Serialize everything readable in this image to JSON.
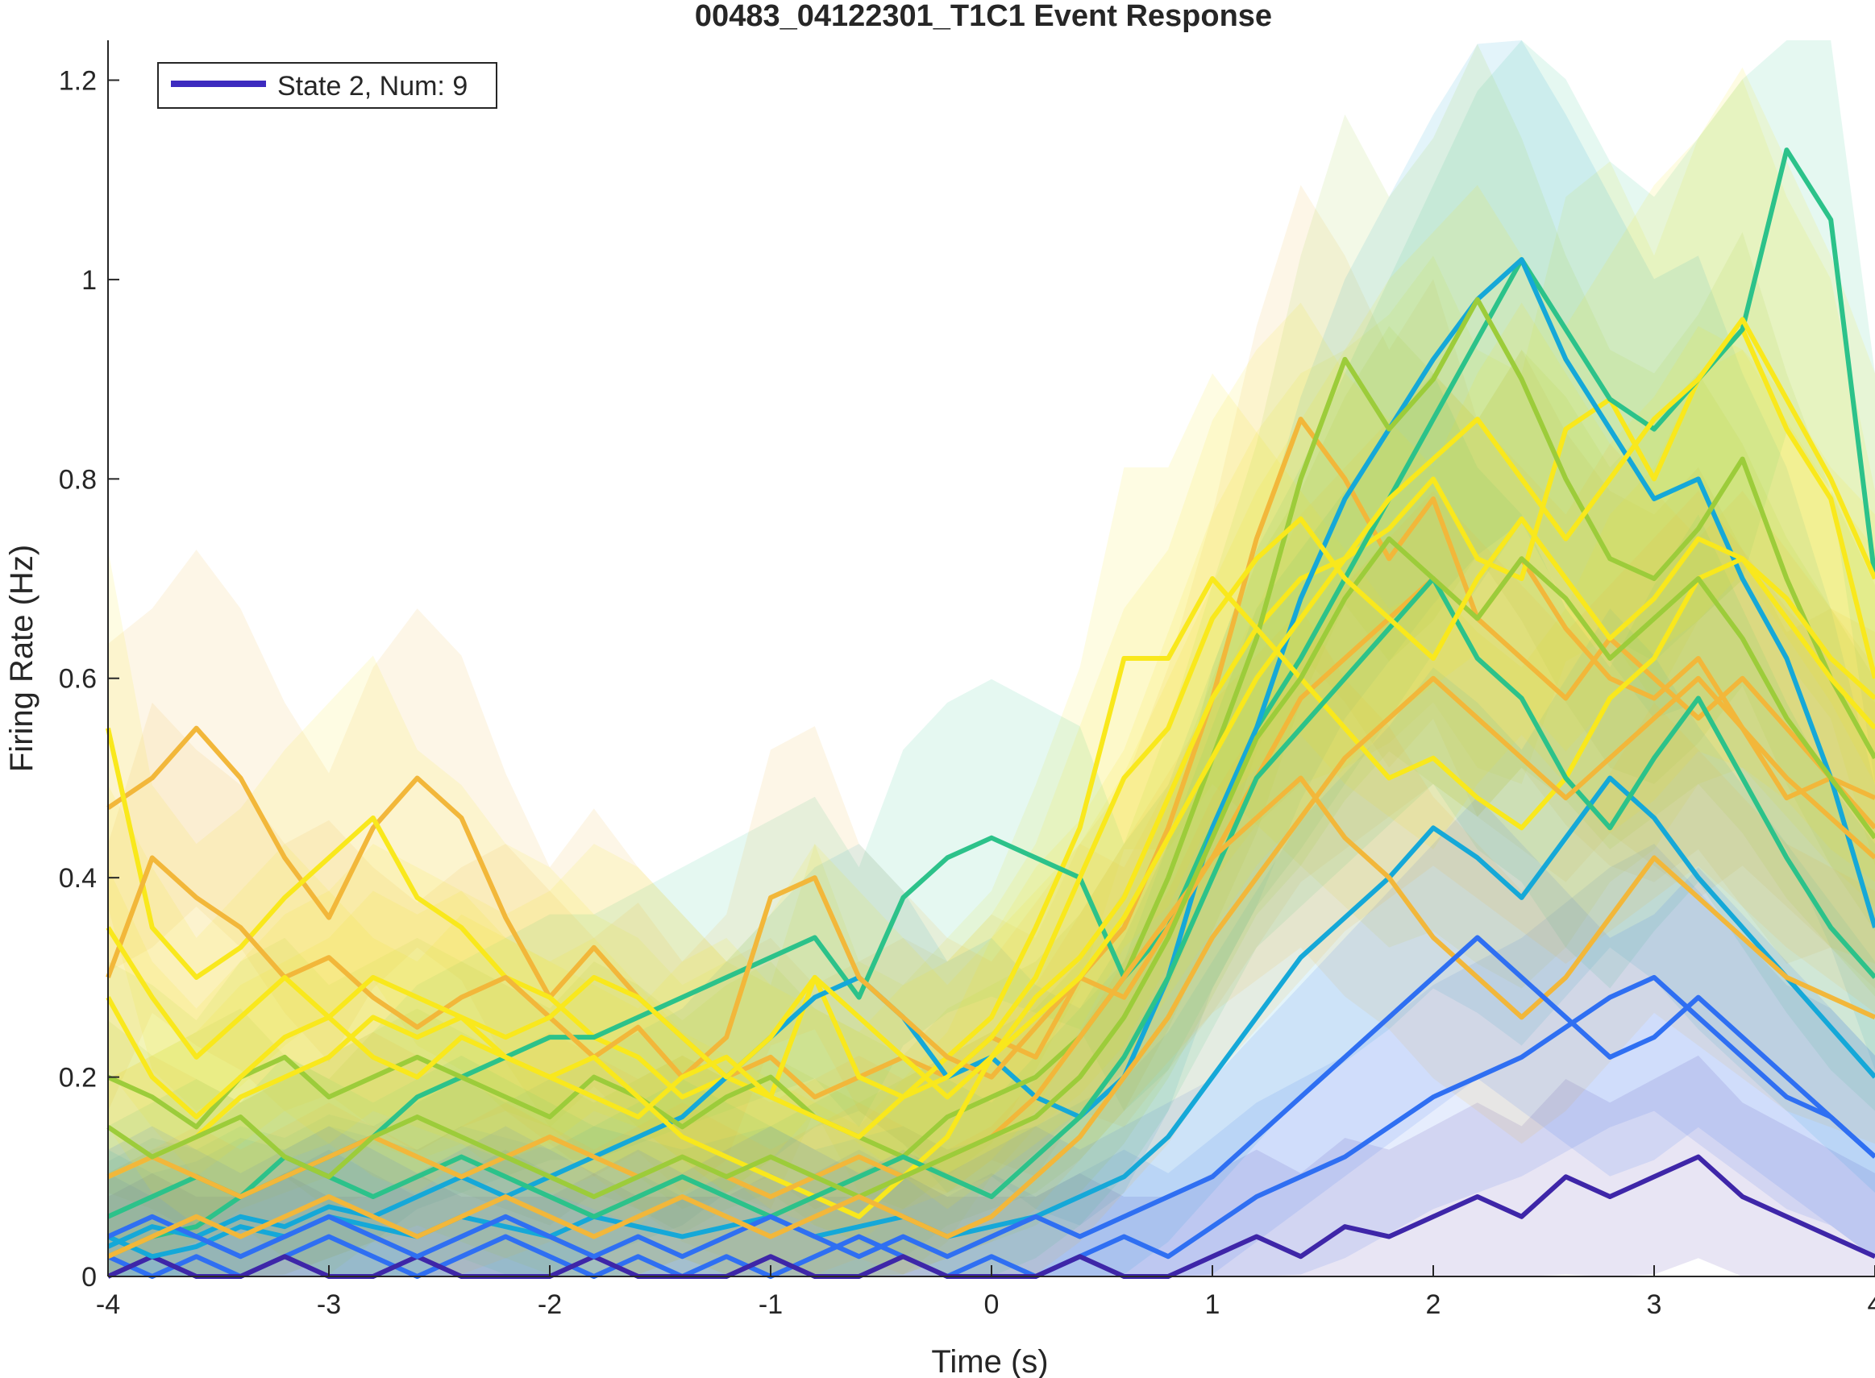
{
  "chart_data": {
    "type": "line",
    "title": "00483_04122301_T1C1 Event Response",
    "xlabel": "Time (s)",
    "ylabel": "Firing Rate (Hz)",
    "xlim": [
      -4,
      4
    ],
    "ylim": [
      0,
      1.24
    ],
    "xticks": [
      -4,
      -3,
      -2,
      -1,
      0,
      1,
      2,
      3,
      4
    ],
    "xtick_labels": [
      "-4",
      "-3",
      "-2",
      "-1",
      "0",
      "1",
      "2",
      "3",
      "4"
    ],
    "yticks": [
      0,
      0.2,
      0.4,
      0.6,
      0.8,
      1,
      1.2
    ],
    "ytick_labels": [
      "0",
      "0.2",
      "0.4",
      "0.6",
      "0.8",
      "1",
      "1.2"
    ],
    "grid": false,
    "legend": {
      "placement": "top-left",
      "entries": [
        {
          "label": "State 2, Num: 9",
          "color": "#3d2bbf"
        }
      ]
    },
    "colormap": [
      "#3e26a8",
      "#2f6ff2",
      "#15a8d8",
      "#2cc28a",
      "#9ccc3a",
      "#f2b73a",
      "#f9e81c"
    ],
    "x": [
      -4,
      -3.8,
      -3.6,
      -3.4,
      -3.2,
      -3,
      -2.8,
      -2.6,
      -2.4,
      -2.2,
      -2,
      -1.8,
      -1.6,
      -1.4,
      -1.2,
      -1,
      -0.8,
      -0.6,
      -0.4,
      -0.2,
      0,
      0.2,
      0.4,
      0.6,
      0.8,
      1,
      1.2,
      1.4,
      1.6,
      1.8,
      2,
      2.2,
      2.4,
      2.6,
      2.8,
      3,
      3.2,
      3.4,
      3.6,
      3.8,
      4
    ],
    "series": [
      {
        "color": "#f2b73a",
        "values": [
          0.47,
          0.5,
          0.55,
          0.5,
          0.42,
          0.36,
          0.45,
          0.5,
          0.46,
          0.36,
          0.28,
          0.33,
          0.28,
          0.24,
          0.2,
          0.22,
          0.18,
          0.2,
          0.22,
          0.2,
          0.24,
          0.22,
          0.3,
          0.35,
          0.45,
          0.58,
          0.74,
          0.86,
          0.8,
          0.72,
          0.78,
          0.66,
          0.72,
          0.65,
          0.6,
          0.58,
          0.62,
          0.55,
          0.48,
          0.5,
          0.45
        ]
      },
      {
        "color": "#f9e81c",
        "values": [
          0.55,
          0.35,
          0.3,
          0.33,
          0.38,
          0.42,
          0.46,
          0.38,
          0.35,
          0.3,
          0.28,
          0.24,
          0.22,
          0.18,
          0.2,
          0.18,
          0.3,
          0.2,
          0.18,
          0.22,
          0.26,
          0.35,
          0.45,
          0.62,
          0.62,
          0.7,
          0.65,
          0.7,
          0.72,
          0.75,
          0.8,
          0.72,
          0.7,
          0.85,
          0.88,
          0.8,
          0.9,
          0.95,
          0.85,
          0.78,
          0.6
        ]
      },
      {
        "color": "#2cc28a",
        "values": [
          0.02,
          0.04,
          0.05,
          0.08,
          0.1,
          0.12,
          0.14,
          0.18,
          0.2,
          0.22,
          0.24,
          0.24,
          0.26,
          0.28,
          0.3,
          0.32,
          0.34,
          0.28,
          0.38,
          0.42,
          0.44,
          0.42,
          0.4,
          0.3,
          0.35,
          0.45,
          0.55,
          0.62,
          0.7,
          0.78,
          0.86,
          0.94,
          1.02,
          0.95,
          0.88,
          0.85,
          0.9,
          0.95,
          1.13,
          1.06,
          0.7
        ]
      },
      {
        "color": "#15a8d8",
        "values": [
          0.03,
          0.05,
          0.04,
          0.06,
          0.05,
          0.07,
          0.06,
          0.08,
          0.1,
          0.08,
          0.1,
          0.12,
          0.14,
          0.16,
          0.2,
          0.24,
          0.28,
          0.3,
          0.26,
          0.2,
          0.22,
          0.18,
          0.16,
          0.2,
          0.3,
          0.45,
          0.55,
          0.68,
          0.78,
          0.85,
          0.92,
          0.98,
          1.02,
          0.92,
          0.85,
          0.78,
          0.8,
          0.7,
          0.62,
          0.5,
          0.35
        ]
      },
      {
        "color": "#9ccc3a",
        "values": [
          0.2,
          0.18,
          0.15,
          0.2,
          0.22,
          0.18,
          0.2,
          0.22,
          0.2,
          0.18,
          0.16,
          0.2,
          0.18,
          0.15,
          0.18,
          0.2,
          0.16,
          0.14,
          0.12,
          0.16,
          0.18,
          0.2,
          0.24,
          0.3,
          0.4,
          0.52,
          0.64,
          0.8,
          0.92,
          0.85,
          0.9,
          0.98,
          0.9,
          0.8,
          0.72,
          0.7,
          0.75,
          0.82,
          0.7,
          0.6,
          0.52
        ]
      },
      {
        "color": "#f2b73a",
        "values": [
          0.3,
          0.42,
          0.38,
          0.35,
          0.3,
          0.32,
          0.28,
          0.25,
          0.28,
          0.3,
          0.26,
          0.22,
          0.25,
          0.2,
          0.24,
          0.38,
          0.4,
          0.3,
          0.26,
          0.22,
          0.2,
          0.25,
          0.3,
          0.28,
          0.35,
          0.42,
          0.5,
          0.58,
          0.62,
          0.66,
          0.7,
          0.66,
          0.62,
          0.58,
          0.64,
          0.6,
          0.56,
          0.6,
          0.55,
          0.5,
          0.48
        ]
      },
      {
        "color": "#f9e81c",
        "values": [
          0.1,
          0.12,
          0.14,
          0.18,
          0.2,
          0.22,
          0.26,
          0.24,
          0.26,
          0.22,
          0.2,
          0.22,
          0.18,
          0.14,
          0.12,
          0.1,
          0.08,
          0.06,
          0.1,
          0.14,
          0.22,
          0.28,
          0.32,
          0.38,
          0.48,
          0.58,
          0.65,
          0.6,
          0.55,
          0.5,
          0.52,
          0.48,
          0.45,
          0.5,
          0.58,
          0.62,
          0.7,
          0.72,
          0.66,
          0.6,
          0.55
        ]
      },
      {
        "color": "#2f6ff2",
        "values": [
          0.02,
          0.0,
          0.02,
          0.0,
          0.02,
          0.04,
          0.02,
          0.0,
          0.02,
          0.04,
          0.02,
          0.0,
          0.02,
          0.0,
          0.02,
          0.0,
          0.02,
          0.04,
          0.02,
          0.0,
          0.02,
          0.0,
          0.02,
          0.04,
          0.02,
          0.05,
          0.08,
          0.1,
          0.12,
          0.15,
          0.18,
          0.2,
          0.22,
          0.25,
          0.28,
          0.3,
          0.26,
          0.22,
          0.18,
          0.16,
          0.12
        ]
      },
      {
        "color": "#3e26a8",
        "values": [
          0.0,
          0.02,
          0.0,
          0.0,
          0.02,
          0.0,
          0.0,
          0.02,
          0.0,
          0.0,
          0.0,
          0.02,
          0.0,
          0.0,
          0.0,
          0.02,
          0.0,
          0.0,
          0.02,
          0.0,
          0.0,
          0.0,
          0.02,
          0.0,
          0.0,
          0.02,
          0.04,
          0.02,
          0.05,
          0.04,
          0.06,
          0.08,
          0.06,
          0.1,
          0.08,
          0.1,
          0.12,
          0.08,
          0.06,
          0.04,
          0.02
        ]
      },
      {
        "color": "#15a8d8",
        "values": [
          0.04,
          0.02,
          0.03,
          0.05,
          0.04,
          0.06,
          0.05,
          0.04,
          0.06,
          0.05,
          0.04,
          0.06,
          0.05,
          0.04,
          0.05,
          0.06,
          0.04,
          0.05,
          0.06,
          0.04,
          0.05,
          0.06,
          0.08,
          0.1,
          0.14,
          0.2,
          0.26,
          0.32,
          0.36,
          0.4,
          0.45,
          0.42,
          0.38,
          0.44,
          0.5,
          0.46,
          0.4,
          0.35,
          0.3,
          0.25,
          0.2
        ]
      },
      {
        "color": "#2cc28a",
        "values": [
          0.06,
          0.08,
          0.1,
          0.08,
          0.12,
          0.1,
          0.08,
          0.1,
          0.12,
          0.1,
          0.08,
          0.06,
          0.08,
          0.1,
          0.08,
          0.06,
          0.08,
          0.1,
          0.12,
          0.1,
          0.08,
          0.12,
          0.16,
          0.22,
          0.3,
          0.4,
          0.5,
          0.55,
          0.6,
          0.65,
          0.7,
          0.62,
          0.58,
          0.5,
          0.45,
          0.52,
          0.58,
          0.5,
          0.42,
          0.35,
          0.3
        ]
      },
      {
        "color": "#f2b73a",
        "values": [
          0.1,
          0.12,
          0.1,
          0.08,
          0.1,
          0.12,
          0.14,
          0.12,
          0.1,
          0.12,
          0.14,
          0.12,
          0.1,
          0.12,
          0.1,
          0.08,
          0.1,
          0.12,
          0.1,
          0.12,
          0.14,
          0.18,
          0.24,
          0.3,
          0.36,
          0.42,
          0.46,
          0.5,
          0.44,
          0.4,
          0.34,
          0.3,
          0.26,
          0.3,
          0.36,
          0.42,
          0.38,
          0.34,
          0.3,
          0.28,
          0.26
        ]
      },
      {
        "color": "#9ccc3a",
        "values": [
          0.15,
          0.12,
          0.14,
          0.16,
          0.12,
          0.1,
          0.14,
          0.16,
          0.14,
          0.12,
          0.1,
          0.08,
          0.1,
          0.12,
          0.1,
          0.12,
          0.1,
          0.08,
          0.1,
          0.12,
          0.14,
          0.16,
          0.2,
          0.26,
          0.34,
          0.44,
          0.54,
          0.6,
          0.68,
          0.74,
          0.7,
          0.66,
          0.72,
          0.68,
          0.62,
          0.66,
          0.7,
          0.64,
          0.56,
          0.5,
          0.44
        ]
      },
      {
        "color": "#f9e81c",
        "values": [
          0.35,
          0.28,
          0.22,
          0.26,
          0.3,
          0.26,
          0.22,
          0.2,
          0.24,
          0.22,
          0.2,
          0.18,
          0.16,
          0.2,
          0.22,
          0.18,
          0.16,
          0.14,
          0.18,
          0.2,
          0.24,
          0.3,
          0.4,
          0.5,
          0.55,
          0.66,
          0.72,
          0.76,
          0.7,
          0.66,
          0.62,
          0.7,
          0.76,
          0.7,
          0.64,
          0.68,
          0.74,
          0.72,
          0.68,
          0.62,
          0.58
        ]
      },
      {
        "color": "#2f6ff2",
        "values": [
          0.04,
          0.06,
          0.04,
          0.02,
          0.04,
          0.06,
          0.04,
          0.02,
          0.04,
          0.06,
          0.04,
          0.02,
          0.04,
          0.02,
          0.04,
          0.06,
          0.04,
          0.02,
          0.04,
          0.02,
          0.04,
          0.06,
          0.04,
          0.06,
          0.08,
          0.1,
          0.14,
          0.18,
          0.22,
          0.26,
          0.3,
          0.34,
          0.3,
          0.26,
          0.22,
          0.24,
          0.28,
          0.24,
          0.2,
          0.16,
          0.12
        ]
      },
      {
        "color": "#f2b73a",
        "values": [
          0.02,
          0.04,
          0.06,
          0.04,
          0.06,
          0.08,
          0.06,
          0.04,
          0.06,
          0.08,
          0.06,
          0.04,
          0.06,
          0.08,
          0.06,
          0.04,
          0.06,
          0.08,
          0.06,
          0.04,
          0.06,
          0.1,
          0.14,
          0.2,
          0.26,
          0.34,
          0.4,
          0.46,
          0.52,
          0.56,
          0.6,
          0.56,
          0.52,
          0.48,
          0.52,
          0.56,
          0.6,
          0.55,
          0.5,
          0.46,
          0.42
        ]
      },
      {
        "color": "#f9e81c",
        "values": [
          0.28,
          0.2,
          0.16,
          0.2,
          0.24,
          0.26,
          0.3,
          0.28,
          0.26,
          0.24,
          0.26,
          0.3,
          0.28,
          0.24,
          0.2,
          0.24,
          0.3,
          0.26,
          0.22,
          0.18,
          0.22,
          0.26,
          0.3,
          0.36,
          0.44,
          0.52,
          0.6,
          0.66,
          0.72,
          0.78,
          0.82,
          0.86,
          0.8,
          0.74,
          0.8,
          0.86,
          0.9,
          0.96,
          0.88,
          0.8,
          0.7
        ]
      }
    ]
  }
}
